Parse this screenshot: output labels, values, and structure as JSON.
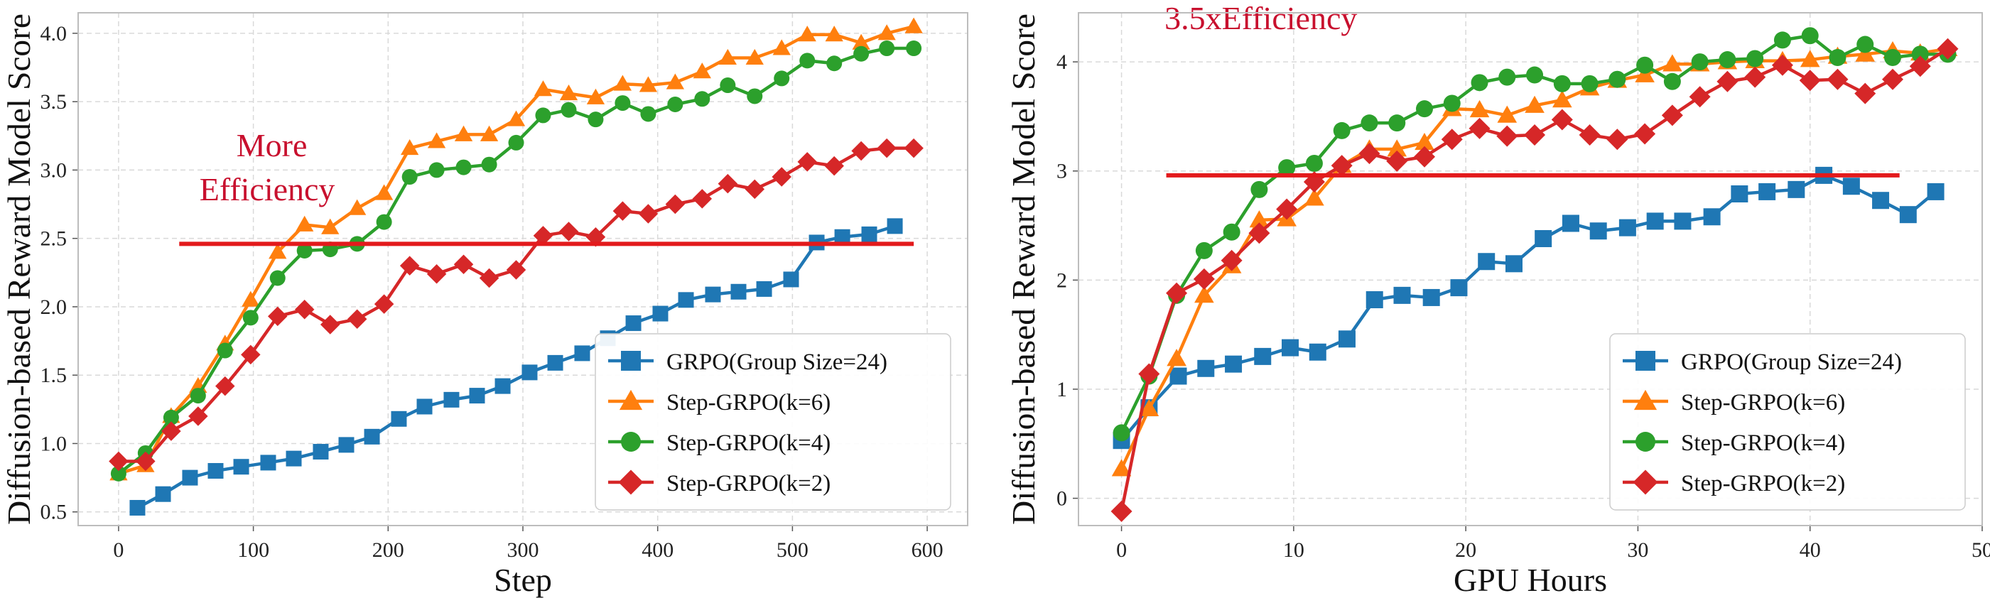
{
  "annotation_color": "#c8102e",
  "chart_data": [
    {
      "type": "line",
      "xlabel": "Step",
      "ylabel": "Diffusion-based Reward Model Score",
      "xlim": [
        -30,
        630
      ],
      "ylim": [
        0.4,
        4.15
      ],
      "xticks": [
        0,
        100,
        200,
        300,
        400,
        500,
        600
      ],
      "yticks": [
        0.5,
        1.0,
        1.5,
        2.0,
        2.5,
        3.0,
        3.5,
        4.0
      ],
      "ytick_decimals": 1,
      "grid": true,
      "legend_position": "bottom-right",
      "annotation": {
        "lines": [
          "More",
          "Efficiency"
        ],
        "x": 60,
        "y": 3.1
      },
      "hline": {
        "y": 2.46,
        "x_start": 45,
        "x_end": 590,
        "color": "#e31a1c"
      },
      "series": [
        {
          "name": "GRPO(Group Size=24)",
          "color": "#1f77b4",
          "marker": "square",
          "x": [
            14,
            33,
            53,
            72,
            91,
            111,
            130,
            150,
            169,
            188,
            208,
            227,
            247,
            266,
            285,
            305,
            324,
            344,
            363,
            382,
            402,
            421,
            441,
            460,
            479,
            499,
            518,
            537,
            557,
            576
          ],
          "y": [
            0.53,
            0.63,
            0.75,
            0.8,
            0.83,
            0.86,
            0.89,
            0.94,
            0.99,
            1.05,
            1.18,
            1.27,
            1.32,
            1.35,
            1.42,
            1.52,
            1.59,
            1.66,
            1.77,
            1.88,
            1.95,
            2.05,
            2.09,
            2.11,
            2.13,
            2.2,
            2.47,
            2.51,
            2.53,
            2.59
          ]
        },
        {
          "name": "Step-GRPO(k=6)",
          "color": "#ff7f0e",
          "marker": "triangle",
          "x": [
            0,
            20,
            39,
            59,
            79,
            98,
            118,
            138,
            157,
            177,
            197,
            216,
            236,
            256,
            275,
            295,
            315,
            334,
            354,
            374,
            393,
            413,
            433,
            452,
            472,
            492,
            511,
            531,
            551,
            570,
            590
          ],
          "y": [
            0.78,
            0.84,
            1.2,
            1.42,
            1.73,
            2.05,
            2.4,
            2.6,
            2.58,
            2.72,
            2.83,
            3.16,
            3.21,
            3.26,
            3.26,
            3.37,
            3.59,
            3.56,
            3.53,
            3.63,
            3.62,
            3.64,
            3.72,
            3.82,
            3.82,
            3.89,
            3.99,
            3.99,
            3.93,
            4.0,
            4.05
          ]
        },
        {
          "name": "Step-GRPO(k=4)",
          "color": "#2ca02c",
          "marker": "circle",
          "x": [
            0,
            20,
            39,
            59,
            79,
            98,
            118,
            138,
            157,
            177,
            197,
            216,
            236,
            256,
            275,
            295,
            315,
            334,
            354,
            374,
            393,
            413,
            433,
            452,
            472,
            492,
            511,
            531,
            551,
            570,
            590
          ],
          "y": [
            0.78,
            0.93,
            1.19,
            1.35,
            1.68,
            1.92,
            2.21,
            2.41,
            2.42,
            2.46,
            2.62,
            2.95,
            3.0,
            3.02,
            3.04,
            3.2,
            3.4,
            3.44,
            3.37,
            3.49,
            3.41,
            3.48,
            3.52,
            3.62,
            3.54,
            3.67,
            3.8,
            3.78,
            3.85,
            3.89,
            3.89
          ]
        },
        {
          "name": "Step-GRPO(k=2)",
          "color": "#d62728",
          "marker": "diamond",
          "x": [
            0,
            20,
            39,
            59,
            79,
            98,
            118,
            138,
            157,
            177,
            197,
            216,
            236,
            256,
            275,
            295,
            315,
            334,
            354,
            374,
            393,
            413,
            433,
            452,
            472,
            492,
            511,
            531,
            551,
            570,
            590
          ],
          "y": [
            0.87,
            0.87,
            1.09,
            1.2,
            1.42,
            1.65,
            1.93,
            1.98,
            1.87,
            1.91,
            2.02,
            2.3,
            2.24,
            2.31,
            2.21,
            2.27,
            2.52,
            2.55,
            2.51,
            2.7,
            2.68,
            2.75,
            2.79,
            2.9,
            2.86,
            2.95,
            3.06,
            3.03,
            3.14,
            3.16,
            3.16
          ]
        }
      ]
    },
    {
      "type": "line",
      "xlabel": "GPU Hours",
      "ylabel": "Diffusion-based Reward Model Score",
      "xlim": [
        -2.5,
        50
      ],
      "ylim": [
        -0.25,
        4.45
      ],
      "xticks": [
        0,
        10,
        20,
        30,
        40,
        50
      ],
      "yticks": [
        0,
        1,
        2,
        3,
        4
      ],
      "ytick_decimals": 0,
      "grid": true,
      "legend_position": "bottom-right",
      "annotation": {
        "lines": [
          "3.5xEfficiency"
        ],
        "x": 2.5,
        "y": 4.3
      },
      "hline": {
        "y": 2.96,
        "x_start": 2.6,
        "x_end": 45.2,
        "color": "#e31a1c"
      },
      "series": [
        {
          "name": "GRPO(Group Size=24)",
          "color": "#1f77b4",
          "marker": "square",
          "x": [
            0,
            1.6,
            3.3,
            4.9,
            6.5,
            8.2,
            9.8,
            11.4,
            13.1,
            14.7,
            16.3,
            18.0,
            19.6,
            21.2,
            22.8,
            24.5,
            26.1,
            27.7,
            29.4,
            31.0,
            32.6,
            34.3,
            35.9,
            37.5,
            39.2,
            40.8,
            42.4,
            44.1,
            45.7,
            47.3
          ],
          "y": [
            0.53,
            0.83,
            1.12,
            1.19,
            1.23,
            1.3,
            1.38,
            1.34,
            1.46,
            1.82,
            1.86,
            1.84,
            1.93,
            2.17,
            2.15,
            2.38,
            2.52,
            2.45,
            2.48,
            2.54,
            2.54,
            2.58,
            2.79,
            2.81,
            2.83,
            2.96,
            2.86,
            2.73,
            2.6,
            2.81
          ]
        },
        {
          "name": "Step-GRPO(k=6)",
          "color": "#ff7f0e",
          "marker": "triangle",
          "x": [
            0,
            1.6,
            3.2,
            4.8,
            6.4,
            8.0,
            9.6,
            11.2,
            12.8,
            14.4,
            16.0,
            17.6,
            19.2,
            20.8,
            22.4,
            24.0,
            25.6,
            27.2,
            28.8,
            30.4,
            32.0,
            33.6,
            35.2,
            36.8,
            38.4,
            40.0,
            41.6,
            43.2,
            44.8,
            46.4,
            48.0
          ],
          "y": [
            0.27,
            0.82,
            1.28,
            1.86,
            2.13,
            2.55,
            2.56,
            2.75,
            3.05,
            3.2,
            3.2,
            3.26,
            3.57,
            3.56,
            3.51,
            3.6,
            3.65,
            3.76,
            3.83,
            3.88,
            3.98,
            3.98,
            4.0,
            4.01,
            4.01,
            4.02,
            4.05,
            4.07,
            4.1,
            4.08,
            4.12
          ]
        },
        {
          "name": "Step-GRPO(k=4)",
          "color": "#2ca02c",
          "marker": "circle",
          "x": [
            0,
            1.6,
            3.2,
            4.8,
            6.4,
            8.0,
            9.6,
            11.2,
            12.8,
            14.4,
            16.0,
            17.6,
            19.2,
            20.8,
            22.4,
            24.0,
            25.6,
            27.2,
            28.8,
            30.4,
            32.0,
            33.6,
            35.2,
            36.8,
            38.4,
            40.0,
            41.6,
            43.2,
            44.8,
            46.4,
            48.0
          ],
          "y": [
            0.6,
            1.12,
            1.86,
            2.27,
            2.44,
            2.83,
            3.03,
            3.07,
            3.37,
            3.44,
            3.44,
            3.57,
            3.62,
            3.81,
            3.86,
            3.88,
            3.8,
            3.8,
            3.84,
            3.97,
            3.82,
            4.0,
            4.02,
            4.03,
            4.2,
            4.24,
            4.04,
            4.16,
            4.04,
            4.07,
            4.07
          ]
        },
        {
          "name": "Step-GRPO(k=2)",
          "color": "#d62728",
          "marker": "diamond",
          "x": [
            0,
            1.6,
            3.2,
            4.8,
            6.4,
            8.0,
            9.6,
            11.2,
            12.8,
            14.4,
            16.0,
            17.6,
            19.2,
            20.8,
            22.4,
            24.0,
            25.6,
            27.2,
            28.8,
            30.4,
            32.0,
            33.6,
            35.2,
            36.8,
            38.4,
            40.0,
            41.6,
            43.2,
            44.8,
            46.4,
            48.0
          ],
          "y": [
            -0.12,
            1.14,
            1.88,
            2.01,
            2.18,
            2.43,
            2.65,
            2.9,
            3.05,
            3.16,
            3.09,
            3.13,
            3.29,
            3.39,
            3.32,
            3.33,
            3.47,
            3.33,
            3.29,
            3.34,
            3.51,
            3.68,
            3.82,
            3.86,
            3.97,
            3.83,
            3.84,
            3.71,
            3.84,
            3.96,
            4.12
          ]
        }
      ]
    }
  ]
}
